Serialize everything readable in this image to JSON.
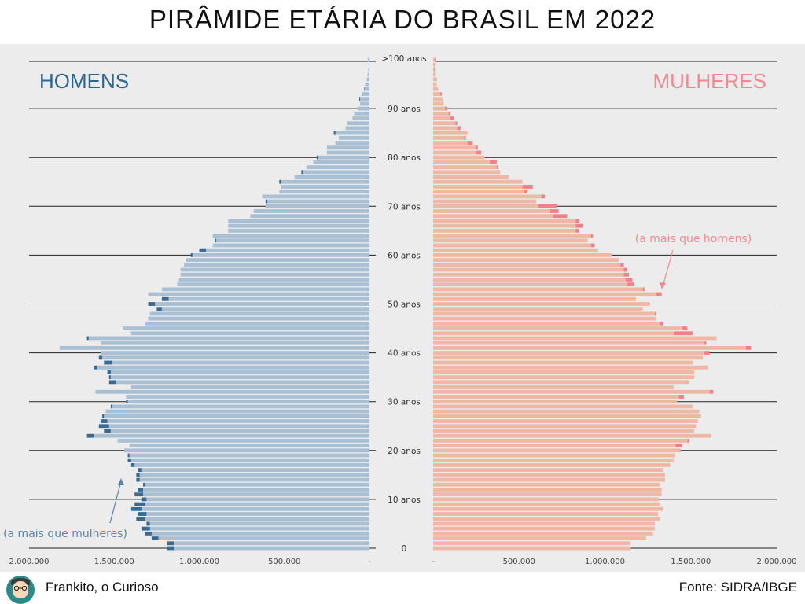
{
  "title": "PIRÂMIDE ETÁRIA DO BRASIL EM 2022",
  "footer": {
    "author": "Frankito, o Curioso",
    "source": "Fonte: SIDRA/IBGE"
  },
  "colors": {
    "male_bar": "#a9bfd4",
    "male_excess": "#3a6a92",
    "male_label": "#2e6690",
    "female_bar": "#efb8a4",
    "female_excess": "#f47f88",
    "female_label": "#f08a92",
    "background": "#ececec",
    "gridline": "#222222"
  },
  "chart_data": {
    "type": "bar",
    "orientation": "horizontal",
    "title": "PIRÂMIDE ETÁRIA DO BRASIL EM 2022",
    "ages": [
      0,
      1,
      2,
      3,
      4,
      5,
      6,
      7,
      8,
      9,
      10,
      11,
      12,
      13,
      14,
      15,
      16,
      17,
      18,
      19,
      20,
      21,
      22,
      23,
      24,
      25,
      26,
      27,
      28,
      29,
      30,
      31,
      32,
      33,
      34,
      35,
      36,
      37,
      38,
      39,
      40,
      41,
      42,
      43,
      44,
      45,
      46,
      47,
      48,
      49,
      50,
      51,
      52,
      53,
      54,
      55,
      56,
      57,
      58,
      59,
      60,
      61,
      62,
      63,
      64,
      65,
      66,
      67,
      68,
      69,
      70,
      71,
      72,
      73,
      74,
      75,
      76,
      77,
      78,
      79,
      80,
      81,
      82,
      83,
      84,
      85,
      86,
      87,
      88,
      89,
      90,
      91,
      92,
      93,
      94,
      95,
      96,
      97,
      98,
      99,
      100
    ],
    "series": [
      {
        "name": "HOMENS",
        "side": "left",
        "values": [
          1190000,
          1190000,
          1280000,
          1320000,
          1340000,
          1310000,
          1370000,
          1360000,
          1400000,
          1380000,
          1340000,
          1380000,
          1360000,
          1330000,
          1370000,
          1370000,
          1360000,
          1400000,
          1420000,
          1420000,
          1440000,
          1410000,
          1480000,
          1660000,
          1560000,
          1590000,
          1580000,
          1570000,
          1550000,
          1520000,
          1430000,
          1430000,
          1610000,
          1400000,
          1530000,
          1530000,
          1540000,
          1620000,
          1560000,
          1590000,
          1580000,
          1820000,
          1580000,
          1660000,
          1400000,
          1450000,
          1320000,
          1300000,
          1290000,
          1250000,
          1300000,
          1220000,
          1300000,
          1220000,
          1130000,
          1120000,
          1110000,
          1110000,
          1090000,
          1080000,
          1050000,
          1000000,
          920000,
          910000,
          920000,
          830000,
          830000,
          830000,
          700000,
          680000,
          610000,
          610000,
          630000,
          530000,
          520000,
          530000,
          440000,
          400000,
          370000,
          330000,
          310000,
          250000,
          250000,
          200000,
          180000,
          210000,
          140000,
          130000,
          100000,
          90000,
          70000,
          55000,
          60000,
          42000,
          32000,
          24000,
          16000,
          11000,
          7000,
          5000,
          10000
        ]
      },
      {
        "name": "MULHERES",
        "side": "right",
        "values": [
          1150000,
          1150000,
          1240000,
          1280000,
          1290000,
          1290000,
          1320000,
          1310000,
          1340000,
          1320000,
          1310000,
          1330000,
          1330000,
          1320000,
          1350000,
          1350000,
          1340000,
          1380000,
          1400000,
          1410000,
          1440000,
          1450000,
          1490000,
          1620000,
          1520000,
          1530000,
          1540000,
          1560000,
          1550000,
          1510000,
          1420000,
          1460000,
          1630000,
          1400000,
          1490000,
          1520000,
          1520000,
          1600000,
          1510000,
          1570000,
          1610000,
          1850000,
          1590000,
          1650000,
          1510000,
          1480000,
          1340000,
          1300000,
          1300000,
          1220000,
          1260000,
          1180000,
          1330000,
          1230000,
          1170000,
          1160000,
          1140000,
          1130000,
          1110000,
          1080000,
          1040000,
          960000,
          940000,
          900000,
          930000,
          850000,
          870000,
          850000,
          780000,
          730000,
          720000,
          600000,
          650000,
          550000,
          580000,
          520000,
          440000,
          390000,
          380000,
          370000,
          300000,
          280000,
          260000,
          230000,
          190000,
          200000,
          160000,
          140000,
          120000,
          100000,
          80000,
          60000,
          55000,
          50000,
          30000,
          20000,
          20000,
          12000,
          10000,
          8000,
          15000
        ]
      }
    ],
    "x_ticks_left": [
      "2.000.000",
      "1.500.000",
      "1.000.000",
      "500.000",
      "-"
    ],
    "x_ticks_right": [
      "-",
      "500.000",
      "1.000.000",
      "1.500.000",
      "2.000.000"
    ],
    "x_range": [
      0,
      2000000
    ],
    "y_ticks": [
      ">100 anos",
      "90 anos",
      "80 anos",
      "70 anos",
      "60 anos",
      "50 anos",
      "40 anos",
      "30 anos",
      "20 anos",
      "10 anos",
      "0"
    ],
    "y_tick_ages": [
      100,
      90,
      80,
      70,
      60,
      50,
      40,
      30,
      20,
      10,
      0
    ],
    "annotations": [
      {
        "text": "(a mais que mulheres)",
        "side": "left"
      },
      {
        "text": "(a mais que homens)",
        "side": "right"
      }
    ]
  }
}
